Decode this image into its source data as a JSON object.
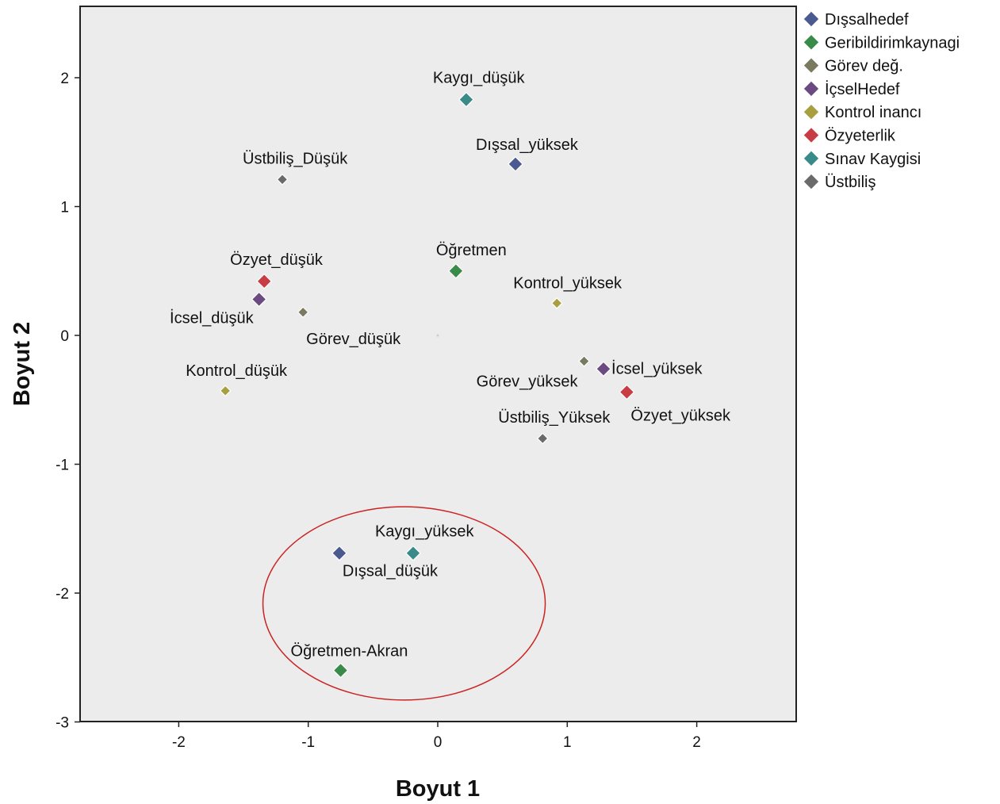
{
  "chart_data": {
    "type": "scatter",
    "xlabel": "Boyut 1",
    "ylabel": "Boyut 2",
    "xlim": [
      -2.8,
      2.8
    ],
    "ylim": [
      -3,
      2.55
    ],
    "xticks": [
      -2,
      -1,
      0,
      1,
      2
    ],
    "yticks": [
      -3,
      -2,
      -1,
      0,
      1,
      2
    ],
    "grid": false,
    "legend_position": "right",
    "background": "#ececec",
    "series": [
      {
        "name": "Dışsalhedef",
        "color": "#4a5a90",
        "points": [
          {
            "x": 0.6,
            "y": 1.33,
            "label": "Dışsal_yüksek"
          },
          {
            "x": -0.76,
            "y": -1.69,
            "label": "Dışsal_düşük"
          }
        ]
      },
      {
        "name": "Geribildirimkaynagi",
        "color": "#3a8a4a",
        "points": [
          {
            "x": 0.14,
            "y": 0.5,
            "label": "Öğretmen"
          },
          {
            "x": -0.75,
            "y": -2.6,
            "label": "Öğretmen-Akran"
          }
        ]
      },
      {
        "name": "Görev değ.",
        "color": "#7a7a60",
        "points": [
          {
            "x": -1.04,
            "y": 0.18,
            "label": "Görev_düşük"
          },
          {
            "x": 1.13,
            "y": -0.2,
            "label": "Görev_yüksek"
          }
        ]
      },
      {
        "name": "İçselHedef",
        "color": "#6a4a80",
        "points": [
          {
            "x": -1.38,
            "y": 0.28,
            "label": "İcsel_düşük"
          },
          {
            "x": 1.28,
            "y": -0.26,
            "label": "İcsel_yüksek"
          }
        ]
      },
      {
        "name": "Kontrol inancı",
        "color": "#a8a040",
        "points": [
          {
            "x": -1.64,
            "y": -0.43,
            "label": "Kontrol_düşük"
          },
          {
            "x": 0.92,
            "y": 0.25,
            "label": "Kontrol_yüksek"
          }
        ]
      },
      {
        "name": "Özyeterlik",
        "color": "#c83c44",
        "points": [
          {
            "x": -1.34,
            "y": 0.42,
            "label": "Özyet_düşük"
          },
          {
            "x": 1.46,
            "y": -0.44,
            "label": "Özyet_yüksek"
          }
        ]
      },
      {
        "name": "Sınav Kaygisi",
        "color": "#3a8a8a",
        "points": [
          {
            "x": 0.22,
            "y": 1.83,
            "label": "Kaygı_düşük"
          },
          {
            "x": -0.19,
            "y": -1.69,
            "label": "Kaygı_yüksek"
          }
        ]
      },
      {
        "name": "Üstbiliş",
        "color": "#6a6a6a",
        "points": [
          {
            "x": -1.2,
            "y": 1.21,
            "label": "Üstbiliş_Düşük"
          },
          {
            "x": 0.81,
            "y": -0.8,
            "label": "Üstbiliş_Yüksek"
          }
        ]
      }
    ],
    "annotations": [
      {
        "type": "ellipse",
        "color": "#cc2222",
        "center": [
          -0.26,
          -2.08
        ],
        "radius_x": 1.09,
        "radius_y": 0.75
      }
    ]
  }
}
